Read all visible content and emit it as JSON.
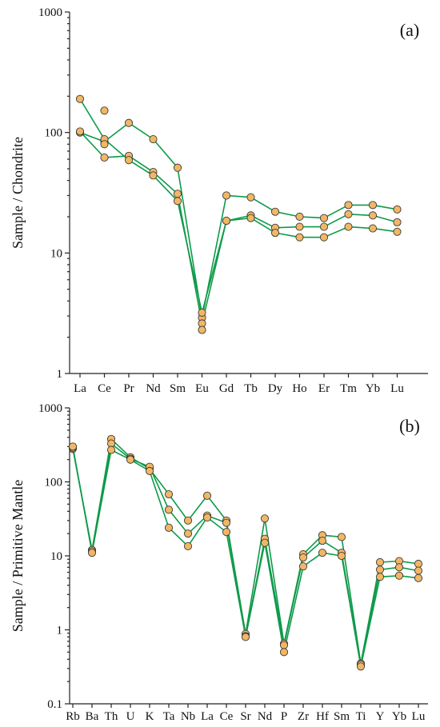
{
  "colors": {
    "line": "#0e9a4a",
    "marker": "#f1b765",
    "marker_edge": "#3a3a3a",
    "axis": "#222222"
  },
  "chart_data": [
    {
      "type": "line",
      "panel_label": "(a)",
      "ylabel": "Sample / Chondrite",
      "xlabel": "",
      "yscale": "log",
      "ylim": [
        1,
        1000
      ],
      "ytick_labels": [
        "1",
        "10",
        "100",
        "1000"
      ],
      "categories": [
        "La",
        "Ce",
        "Pr",
        "Nd",
        "Sm",
        "Eu",
        "Gd",
        "Tb",
        "Dy",
        "Ho",
        "Er",
        "Tm",
        "Yb",
        "Lu"
      ],
      "grid": false,
      "series": [
        {
          "values": [
            100,
            84,
            120,
            88,
            51,
            2.9,
            30,
            29,
            22,
            20,
            19.5,
            25,
            25,
            23
          ]
        },
        {
          "values": [
            102,
            62,
            64,
            47,
            31,
            2.6,
            18.5,
            20.5,
            16.2,
            16.5,
            16.5,
            21,
            20.5,
            18
          ]
        },
        {
          "values": [
            190,
            88,
            59,
            44,
            27,
            3.2,
            18.5,
            19.5,
            14.7,
            13.5,
            13.5,
            16.5,
            16,
            15
          ]
        }
      ],
      "extra_points": [
        {
          "category": "Ce",
          "value": 152
        },
        {
          "category": "Ce",
          "value": 80
        },
        {
          "category": "Eu",
          "value": 2.3
        }
      ]
    },
    {
      "type": "line",
      "panel_label": "(b)",
      "ylabel": "Sample / Primitive Mantle",
      "xlabel": "",
      "yscale": "log",
      "ylim": [
        0.1,
        1000
      ],
      "ytick_labels": [
        "0.1",
        "1",
        "10",
        "100",
        "1000"
      ],
      "categories": [
        "Rb",
        "Ba",
        "Th",
        "U",
        "K",
        "Ta",
        "Nb",
        "La",
        "Ce",
        "Sr",
        "Nd",
        "P",
        "Zr",
        "Hf",
        "Sm",
        "Ti",
        "Y",
        "Yb",
        "Lu"
      ],
      "grid": false,
      "series": [
        {
          "values": [
            280,
            12,
            380,
            215,
            150,
            68,
            30,
            65,
            30,
            0.88,
            32,
            0.65,
            10.5,
            19,
            18,
            0.35,
            8.2,
            8.5,
            7.8
          ]
        },
        {
          "values": [
            290,
            11.5,
            330,
            205,
            160,
            42,
            20,
            35,
            28,
            0.82,
            17,
            0.62,
            9.5,
            16,
            11,
            0.34,
            6.5,
            7.0,
            6.3
          ]
        },
        {
          "values": [
            300,
            11,
            270,
            200,
            140,
            24,
            13.5,
            33,
            21,
            0.8,
            15,
            0.5,
            7.2,
            11,
            10,
            0.32,
            5.2,
            5.4,
            5.0
          ]
        }
      ]
    }
  ]
}
